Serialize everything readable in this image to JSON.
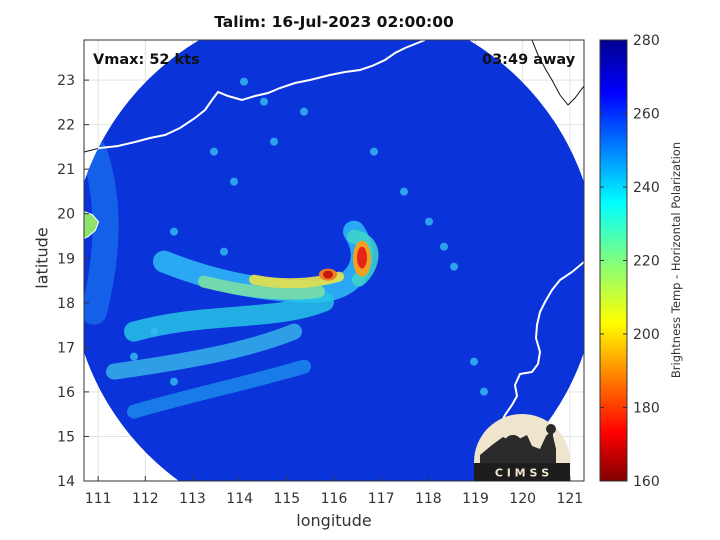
{
  "chart_data": {
    "type": "heatmap",
    "title": "Talim: 16-Jul-2023 02:00:00",
    "xlabel": "longitude",
    "ylabel": "latitude",
    "xlim": [
      110.7,
      121.3
    ],
    "ylim": [
      14,
      23.9
    ],
    "xticks": [
      111,
      112,
      113,
      114,
      115,
      116,
      117,
      118,
      119,
      120,
      121
    ],
    "yticks": [
      14,
      15,
      16,
      17,
      18,
      19,
      20,
      21,
      22,
      23
    ],
    "grid": true,
    "annotations": {
      "vmax": "Vmax: 52 kts",
      "time_away": "03:49 away"
    },
    "swath": {
      "center_lon": 116.0,
      "center_lat": 18.8,
      "radius_deg": 5.6
    },
    "storm_center": {
      "lon": 116.0,
      "lat": 18.7
    },
    "colorbar": {
      "label": "Brightness Temp - Horizontal Polarization",
      "range": [
        160,
        280
      ],
      "ticks": [
        160,
        180,
        200,
        220,
        240,
        260,
        280
      ],
      "colormap": "jet"
    },
    "logo_text": "C I M S S"
  },
  "colors": {
    "background_swath": "#0a2fd6",
    "coast_line": "#ffffff",
    "coast_outside": "#111111",
    "logo_bg": "#efe4cc"
  }
}
